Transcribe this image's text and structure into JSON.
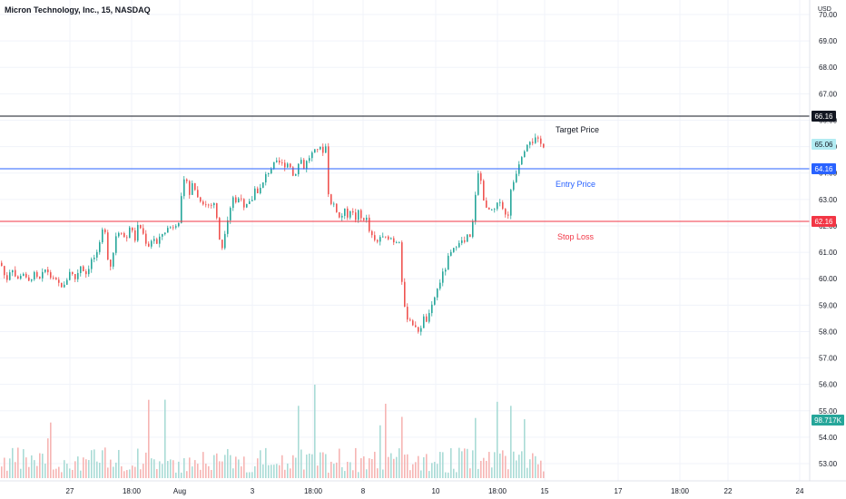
{
  "header": {
    "title": "Micron Technology, Inc., 15, NASDAQ"
  },
  "price_axis": {
    "currency": "USD",
    "ticks": [
      "53.00",
      "54.00",
      "55.00",
      "56.00",
      "57.00",
      "58.00",
      "59.00",
      "60.00",
      "61.00",
      "62.00",
      "63.00",
      "64.00",
      "65.00",
      "66.00",
      "67.00",
      "68.00",
      "69.00",
      "70.00"
    ]
  },
  "time_axis": {
    "ticks": [
      "27",
      "18:00",
      "Aug",
      "3",
      "18:00",
      "8",
      "10",
      "18:00",
      "15",
      "17",
      "18:00",
      "22",
      "24"
    ]
  },
  "levels": {
    "target": {
      "value": "66.16",
      "label": "Target Price",
      "color": "#131722",
      "tag_bg": "#131722"
    },
    "entry": {
      "value": "64.16",
      "label": "Entry Price",
      "color": "#2962ff",
      "tag_bg": "#2962ff"
    },
    "stop": {
      "value": "62.16",
      "label": "Stop Loss",
      "color": "#f23645",
      "tag_bg": "#f23645"
    }
  },
  "last_price": {
    "value": "65.06",
    "color": "#7fd3d9"
  },
  "volume_badge": {
    "value": "98.717K",
    "color": "#26a69a"
  },
  "colors": {
    "up": "#26a69a",
    "down": "#ef5350",
    "vol_up": "#a9dbd6",
    "vol_down": "#f6b5b3",
    "grid": "#f0f3fa"
  },
  "chart_data": {
    "type": "candlestick",
    "y_range": [
      52.6,
      70.3
    ],
    "series": [
      {
        "close_path": [
          [
            0,
            60.6
          ],
          [
            6,
            59.9
          ],
          [
            12,
            60.5
          ],
          [
            18,
            59.9
          ],
          [
            24,
            60.3
          ],
          [
            30,
            59.8
          ],
          [
            36,
            60.2
          ],
          [
            42,
            59.9
          ],
          [
            50,
            60.4
          ],
          [
            56,
            60.0
          ],
          [
            64,
            59.8
          ],
          [
            70,
            59.7
          ],
          [
            76,
            60.3
          ],
          [
            82,
            60.0
          ],
          [
            88,
            60.5
          ],
          [
            94,
            60.2
          ],
          [
            100,
            60.7
          ],
          [
            106,
            60.9
          ],
          [
            110,
            61.4
          ],
          [
            114,
            62.2
          ],
          [
            118,
            60.8
          ],
          [
            122,
            60.4
          ],
          [
            126,
            61.6
          ],
          [
            132,
            61.9
          ],
          [
            138,
            61.4
          ],
          [
            142,
            62.0
          ],
          [
            148,
            61.5
          ],
          [
            152,
            62.1
          ],
          [
            158,
            61.6
          ],
          [
            162,
            61.2
          ],
          [
            168,
            61.6
          ],
          [
            172,
            61.3
          ],
          [
            178,
            61.7
          ],
          [
            184,
            61.9
          ],
          [
            190,
            62.0
          ],
          [
            196,
            62.2
          ],
          [
            200,
            63.3
          ],
          [
            204,
            64.0
          ],
          [
            208,
            63.2
          ],
          [
            212,
            63.7
          ],
          [
            216,
            63.1
          ],
          [
            220,
            63.0
          ],
          [
            226,
            62.8
          ],
          [
            232,
            62.8
          ],
          [
            236,
            62.9
          ],
          [
            240,
            61.6
          ],
          [
            244,
            61.2
          ],
          [
            248,
            62.0
          ],
          [
            252,
            62.6
          ],
          [
            256,
            63.1
          ],
          [
            260,
            62.8
          ],
          [
            264,
            63.3
          ],
          [
            268,
            62.6
          ],
          [
            272,
            62.8
          ],
          [
            276,
            62.9
          ],
          [
            280,
            63.4
          ],
          [
            284,
            63.3
          ],
          [
            288,
            63.5
          ],
          [
            292,
            63.9
          ],
          [
            296,
            64.1
          ],
          [
            300,
            64.3
          ],
          [
            306,
            64.4
          ],
          [
            312,
            64.3
          ],
          [
            318,
            64.4
          ],
          [
            322,
            63.9
          ],
          [
            326,
            64.1
          ],
          [
            330,
            64.6
          ],
          [
            334,
            64.2
          ],
          [
            338,
            64.5
          ],
          [
            342,
            64.7
          ],
          [
            346,
            64.8
          ],
          [
            350,
            65.0
          ],
          [
            354,
            64.8
          ],
          [
            358,
            65.0
          ],
          [
            362,
            62.7
          ],
          [
            366,
            62.9
          ],
          [
            370,
            62.6
          ],
          [
            374,
            62.2
          ],
          [
            378,
            62.6
          ],
          [
            382,
            62.4
          ],
          [
            386,
            62.7
          ],
          [
            390,
            62.2
          ],
          [
            394,
            62.5
          ],
          [
            398,
            62.2
          ],
          [
            402,
            62.4
          ],
          [
            406,
            61.8
          ],
          [
            410,
            61.5
          ],
          [
            414,
            61.3
          ],
          [
            418,
            61.6
          ],
          [
            422,
            61.5
          ],
          [
            428,
            61.6
          ],
          [
            434,
            61.4
          ],
          [
            440,
            61.5
          ],
          [
            441,
            60.6
          ],
          [
            443,
            59.3
          ],
          [
            446,
            58.6
          ],
          [
            450,
            58.5
          ],
          [
            454,
            58.3
          ],
          [
            458,
            58.0
          ],
          [
            462,
            58.1
          ],
          [
            466,
            58.5
          ],
          [
            470,
            58.4
          ],
          [
            474,
            58.8
          ],
          [
            478,
            59.3
          ],
          [
            482,
            59.7
          ],
          [
            486,
            60.1
          ],
          [
            490,
            60.4
          ],
          [
            494,
            60.9
          ],
          [
            498,
            61.0
          ],
          [
            502,
            61.3
          ],
          [
            506,
            61.5
          ],
          [
            510,
            61.3
          ],
          [
            514,
            61.6
          ],
          [
            518,
            61.5
          ],
          [
            520,
            62.1
          ],
          [
            524,
            63.6
          ],
          [
            527,
            64.1
          ],
          [
            530,
            63.5
          ],
          [
            534,
            62.6
          ],
          [
            538,
            62.6
          ],
          [
            542,
            62.5
          ],
          [
            546,
            62.7
          ],
          [
            550,
            63.0
          ],
          [
            554,
            62.6
          ],
          [
            558,
            62.2
          ],
          [
            562,
            63.3
          ],
          [
            566,
            63.8
          ],
          [
            570,
            64.3
          ],
          [
            574,
            64.7
          ],
          [
            578,
            65.0
          ],
          [
            582,
            65.3
          ],
          [
            586,
            65.2
          ],
          [
            590,
            65.3
          ],
          [
            594,
            65.1
          ],
          [
            598,
            65.06
          ]
        ]
      }
    ],
    "levels": [
      {
        "name": "Target Price",
        "value": 66.16
      },
      {
        "name": "Entry Price",
        "value": 64.16
      },
      {
        "name": "Stop Loss",
        "value": 62.16
      }
    ],
    "last_price": 65.06,
    "last_volume": "98.717K",
    "grid": true
  }
}
